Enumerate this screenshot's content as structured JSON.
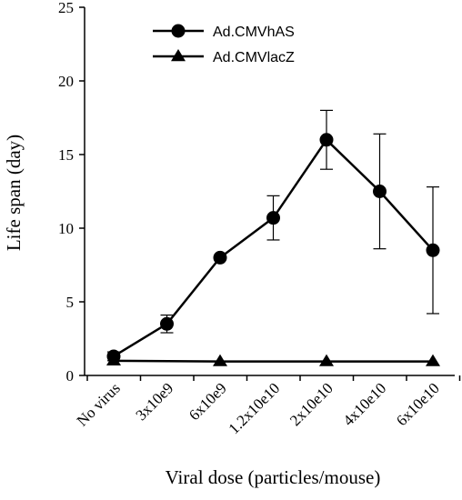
{
  "chart_data": {
    "type": "line",
    "title": "",
    "xlabel": "Viral dose (particles/mouse)",
    "ylabel": "Life span (day)",
    "categories": [
      "No virus",
      "3x10e9",
      "6x10e9",
      "1.2x10e10",
      "2x10e10",
      "4x10e10",
      "6x10e10"
    ],
    "ylim": [
      0,
      25
    ],
    "yticks": [
      0,
      5,
      10,
      15,
      20,
      25
    ],
    "grid": false,
    "legend": "top-center",
    "series": [
      {
        "name": "Ad.CMVhAS",
        "marker": "circle",
        "values": [
          1.3,
          3.5,
          8.0,
          10.7,
          16.0,
          12.5,
          8.5
        ],
        "errors": [
          0.3,
          0.6,
          null,
          1.5,
          2.0,
          3.9,
          4.3
        ]
      },
      {
        "name": "Ad.CMVlacZ",
        "marker": "triangle",
        "values": [
          1.0,
          null,
          0.95,
          null,
          0.95,
          null,
          0.95
        ],
        "errors": [
          null,
          null,
          null,
          null,
          null,
          null,
          null
        ]
      }
    ],
    "colors": {
      "line": "#000000"
    }
  }
}
